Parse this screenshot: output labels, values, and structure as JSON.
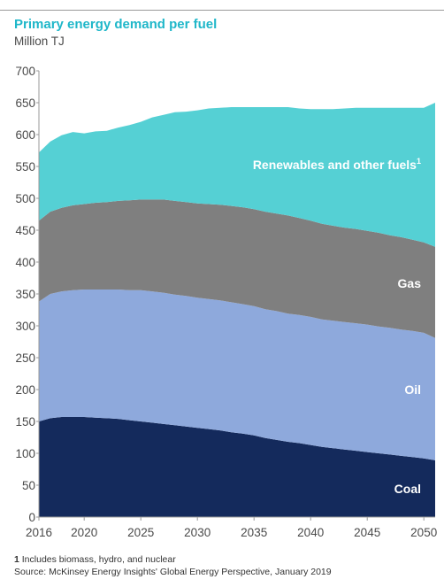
{
  "title": "Primary energy demand per fuel",
  "subtitle": "Million TJ",
  "footnote_marker": "1",
  "footnote_text": "Includes biomass, hydro, and nuclear",
  "source": "Source: McKinsey Energy Insights' Global Energy Perspective, January 2019",
  "chart_data": {
    "type": "area",
    "stacked": true,
    "title": "Primary energy demand per fuel",
    "ylabel": "Million TJ",
    "ylim": [
      0,
      700
    ],
    "yticks": [
      0,
      50,
      100,
      150,
      200,
      250,
      300,
      350,
      400,
      450,
      500,
      550,
      600,
      650,
      700
    ],
    "xlim": [
      2016,
      2051
    ],
    "xticks": [
      2016,
      2020,
      2025,
      2030,
      2035,
      2040,
      2045,
      2050
    ],
    "x": [
      2016,
      2017,
      2018,
      2019,
      2020,
      2021,
      2022,
      2023,
      2024,
      2025,
      2026,
      2027,
      2028,
      2029,
      2030,
      2031,
      2032,
      2033,
      2034,
      2035,
      2036,
      2037,
      2038,
      2039,
      2040,
      2041,
      2042,
      2043,
      2044,
      2045,
      2046,
      2047,
      2048,
      2049,
      2050,
      2051
    ],
    "grid": false,
    "series": [
      {
        "name": "Coal",
        "color": "#142a5c",
        "values": [
          150,
          155,
          157,
          157,
          157,
          156,
          155,
          154,
          152,
          150,
          148,
          146,
          144,
          142,
          140,
          138,
          136,
          133,
          131,
          128,
          124,
          121,
          118,
          116,
          113,
          110,
          108,
          106,
          104,
          102,
          100,
          98,
          96,
          94,
          92,
          89
        ]
      },
      {
        "name": "Oil",
        "color": "#8ea9dc",
        "values": [
          188,
          195,
          197,
          199,
          200,
          201,
          202,
          203,
          204,
          206,
          206,
          206,
          205,
          205,
          204,
          204,
          204,
          204,
          203,
          203,
          202,
          202,
          201,
          201,
          201,
          200,
          200,
          200,
          200,
          200,
          199,
          199,
          198,
          198,
          197,
          192
        ]
      },
      {
        "name": "Gas",
        "color": "#7f7f7f",
        "values": [
          127,
          129,
          131,
          133,
          134,
          136,
          137,
          139,
          141,
          142,
          144,
          146,
          147,
          147,
          148,
          149,
          150,
          151,
          152,
          152,
          153,
          153,
          154,
          152,
          151,
          150,
          149,
          148,
          148,
          147,
          147,
          145,
          145,
          143,
          142,
          143
        ]
      },
      {
        "name": "Renewables and other fuels",
        "label_superscript": "1",
        "color": "#55d0d4",
        "values": [
          107,
          110,
          114,
          115,
          111,
          112,
          112,
          115,
          118,
          122,
          129,
          133,
          139,
          142,
          146,
          150,
          152,
          155,
          157,
          160,
          164,
          167,
          170,
          172,
          175,
          180,
          183,
          187,
          190,
          193,
          196,
          200,
          203,
          207,
          211,
          226
        ]
      }
    ]
  }
}
